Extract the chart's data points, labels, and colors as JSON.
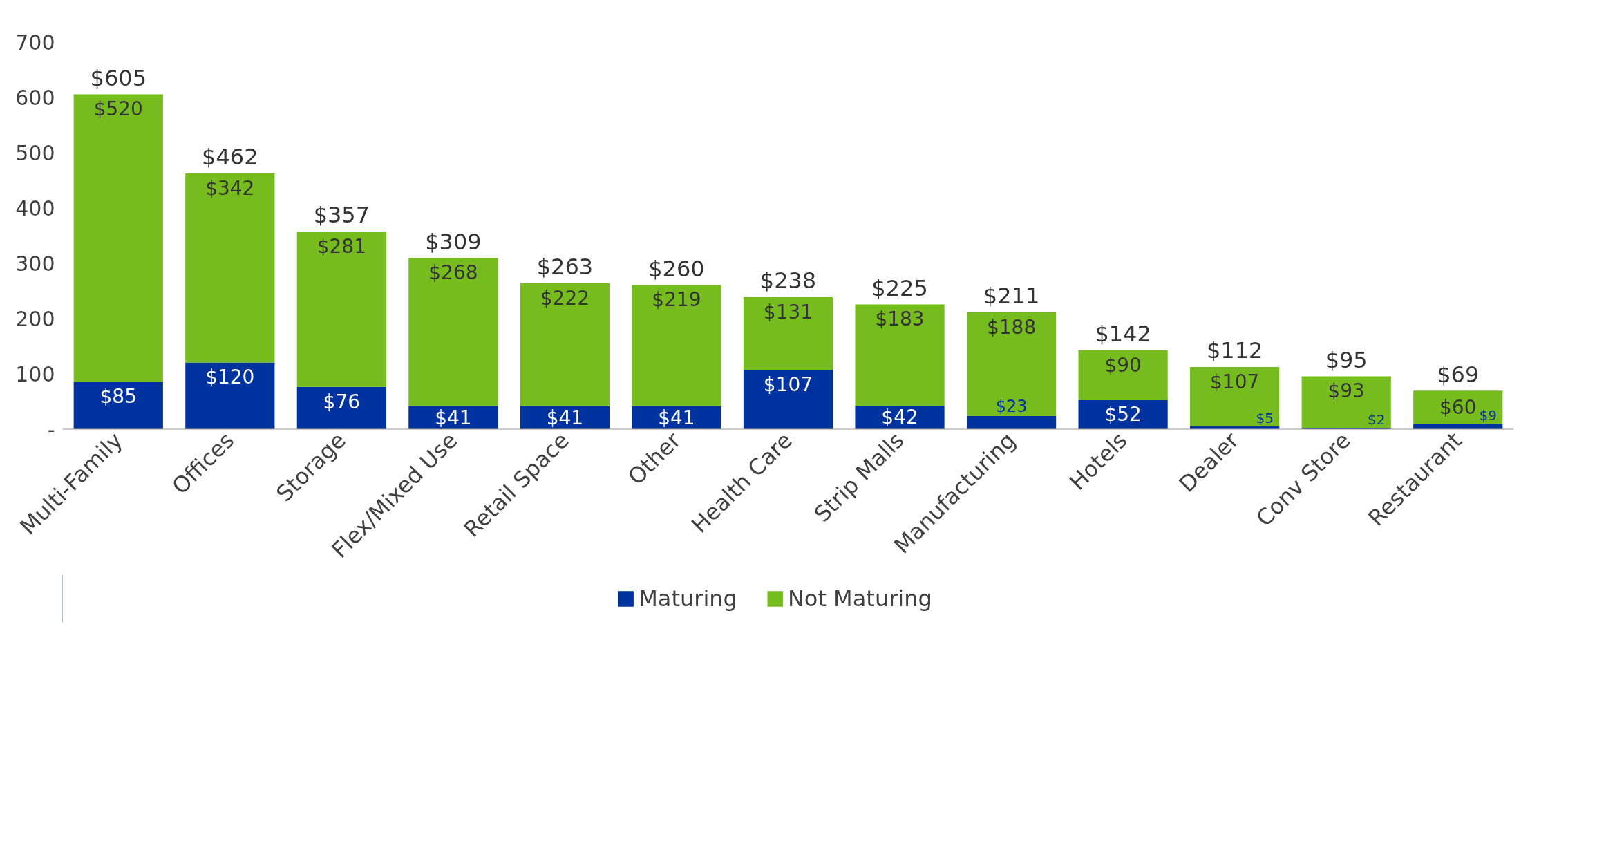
{
  "chart_data": {
    "type": "bar",
    "stacked": true,
    "categories": [
      "Multi-Family",
      "Offices",
      "Storage",
      "Flex/Mixed Use",
      "Retail Space",
      "Other",
      "Health Care",
      "Strip Malls",
      "Manufacturing",
      "Hotels",
      "Dealer",
      "Conv Store",
      "Restaurant"
    ],
    "series": [
      {
        "name": "Maturing",
        "color": "#0033a0",
        "values": [
          85,
          120,
          76,
          41,
          41,
          41,
          107,
          42,
          23,
          52,
          5,
          2,
          9
        ],
        "value_labels": [
          "$85",
          "$120",
          "$76",
          "$41",
          "$41",
          "$41",
          "$107",
          "$42",
          "$23",
          "$52",
          "$5",
          "$2",
          "$9"
        ]
      },
      {
        "name": "Not Maturing",
        "color": "#77bc1f",
        "values": [
          520,
          342,
          281,
          268,
          222,
          219,
          131,
          183,
          188,
          90,
          107,
          93,
          60
        ],
        "value_labels": [
          "$520",
          "$342",
          "$281",
          "$268",
          "$222",
          "$219",
          "$131",
          "$183",
          "$188",
          "$90",
          "$107",
          "$93",
          "$60"
        ]
      }
    ],
    "totals": [
      "$605",
      "$462",
      "$357",
      "$309",
      "$263",
      "$260",
      "$238",
      "$225",
      "$211",
      "$142",
      "$112",
      "$95",
      "$69"
    ],
    "ylim": [
      0,
      700
    ],
    "yticks": [
      {
        "value": 0,
        "label": "-"
      },
      100,
      200,
      300,
      400,
      500,
      600,
      700
    ],
    "grid": false,
    "legend": "bottom"
  }
}
